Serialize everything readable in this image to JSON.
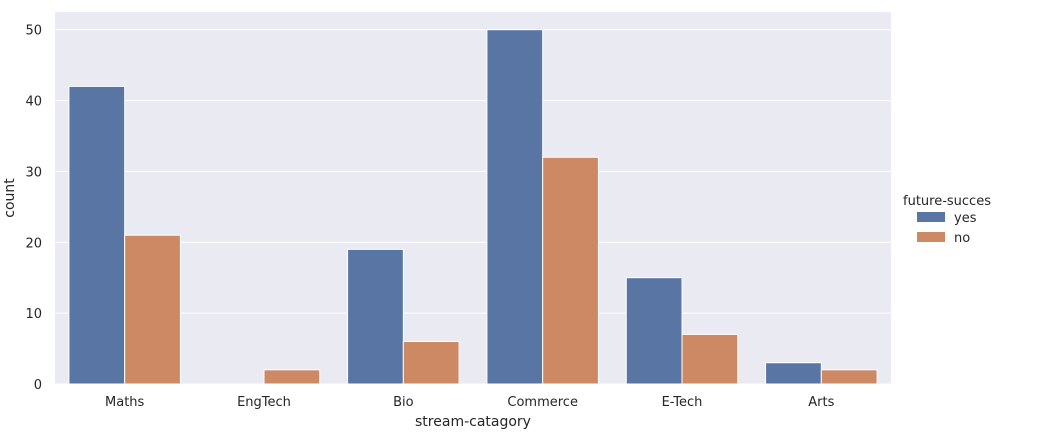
{
  "chart_data": {
    "type": "bar",
    "title": "",
    "xlabel": "stream-catagory",
    "ylabel": "count",
    "categories": [
      "Maths",
      "EngTech",
      "Bio",
      "Commerce",
      "E-Tech",
      "Arts"
    ],
    "series": [
      {
        "name": "yes",
        "color": "#5875a4",
        "values": [
          42,
          null,
          19,
          50,
          15,
          3
        ]
      },
      {
        "name": "no",
        "color": "#cc8963",
        "values": [
          21,
          2,
          6,
          32,
          7,
          2
        ]
      }
    ],
    "ylim": [
      0,
      52.5
    ],
    "yticks": [
      0,
      10,
      20,
      30,
      40,
      50
    ],
    "grid": true,
    "legend": {
      "title": "future-succes",
      "placement": "right"
    },
    "background": "#eaeaf2",
    "grid_color": "#ffffff"
  }
}
